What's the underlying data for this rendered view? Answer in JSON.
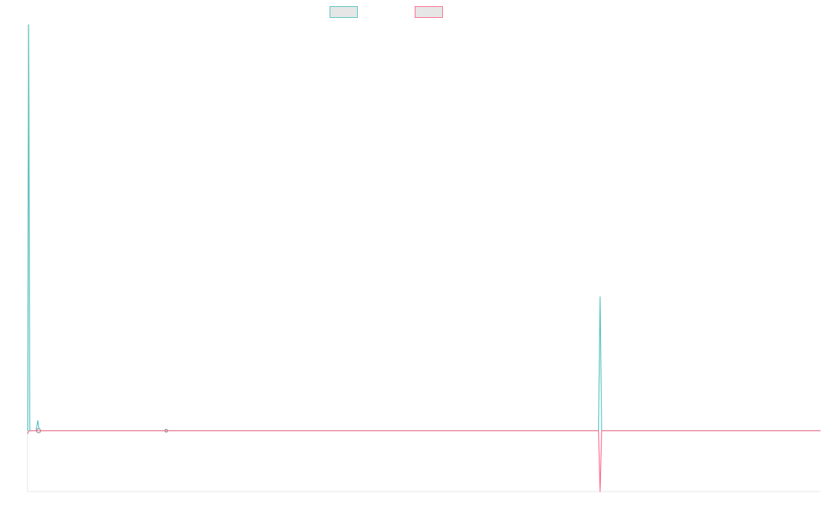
{
  "chart_data": {
    "type": "line",
    "title": "",
    "xlabel": "",
    "ylabel": "",
    "legend_position": "top-center",
    "grid": false,
    "x_range": [
      0,
      1000
    ],
    "y_range": [
      -1.5,
      10
    ],
    "series": [
      {
        "color": "#4bc0c0",
        "fill": "#e6e6e6",
        "points": [
          {
            "x": 0,
            "y": 0
          },
          {
            "x": 0.5,
            "y": 0
          },
          {
            "x": 1.5,
            "y": 10
          },
          {
            "x": 3,
            "y": 0
          },
          {
            "x": 11,
            "y": 0
          },
          {
            "x": 13,
            "y": 0.25
          },
          {
            "x": 15,
            "y": 0
          },
          {
            "x": 720,
            "y": 0
          },
          {
            "x": 722,
            "y": 3.3
          },
          {
            "x": 724,
            "y": 0
          },
          {
            "x": 1000,
            "y": 0
          }
        ],
        "markers": [
          {
            "x": 14,
            "y": 0
          },
          {
            "x": 175,
            "y": 0
          }
        ]
      },
      {
        "color": "#ff6384",
        "fill": "#e6e6e6",
        "points": [
          {
            "x": 0,
            "y": -0.08
          },
          {
            "x": 2,
            "y": 0
          },
          {
            "x": 720,
            "y": 0
          },
          {
            "x": 722,
            "y": -1.5
          },
          {
            "x": 724,
            "y": 0
          },
          {
            "x": 1000,
            "y": 0
          }
        ],
        "markers": []
      }
    ]
  }
}
